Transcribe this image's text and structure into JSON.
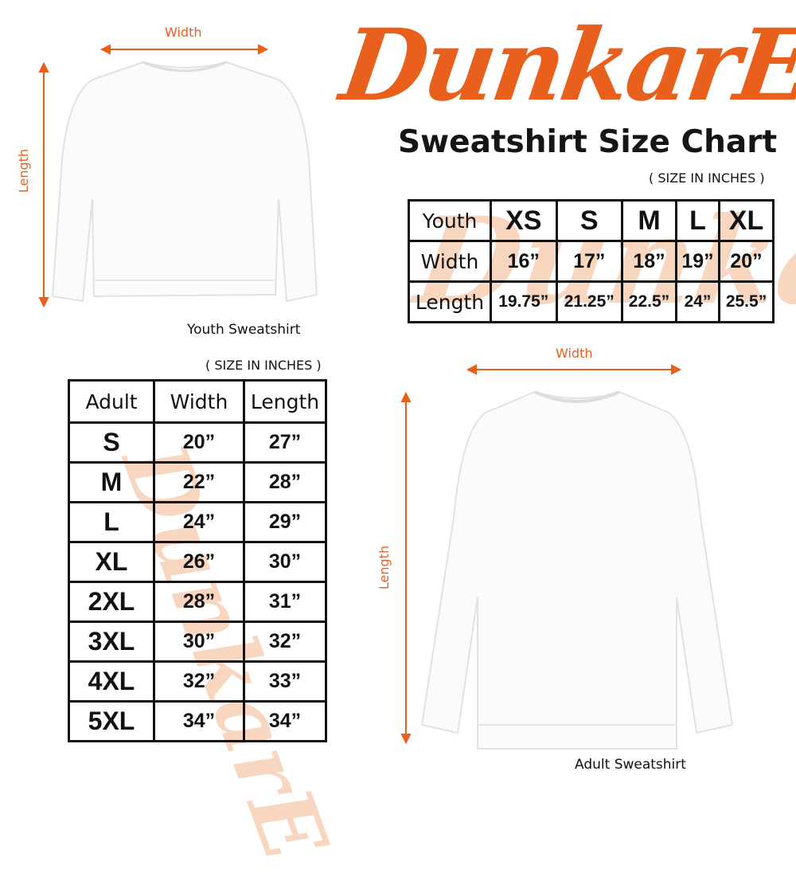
{
  "brand": {
    "logo_text": "DunkarE",
    "accent_color": "#e8601c"
  },
  "title": "Sweatshirt Size Chart",
  "youth": {
    "units_note": "( SIZE IN INCHES )",
    "image_caption": "Youth Sweatshirt",
    "width_label": "Width",
    "length_label": "Length",
    "table": {
      "header": [
        "Youth",
        "XS",
        "S",
        "M",
        "L",
        "XL"
      ],
      "rows": [
        [
          "Width",
          "16”",
          "17”",
          "18”",
          "19”",
          "20”"
        ],
        [
          "Length",
          "19.75”",
          "21.25”",
          "22.5”",
          "24”",
          "25.5”"
        ]
      ]
    }
  },
  "adult": {
    "units_note": "( SIZE IN INCHES )",
    "image_caption": "Adult Sweatshirt",
    "width_label": "Width",
    "length_label": "Length",
    "table": {
      "header": [
        "Adult",
        "Width",
        "Length"
      ],
      "rows": [
        [
          "S",
          "20”",
          "27”"
        ],
        [
          "M",
          "22”",
          "28”"
        ],
        [
          "L",
          "24”",
          "29”"
        ],
        [
          "XL",
          "26”",
          "30”"
        ],
        [
          "2XL",
          "28”",
          "31”"
        ],
        [
          "3XL",
          "30”",
          "32”"
        ],
        [
          "4XL",
          "32”",
          "33”"
        ],
        [
          "5XL",
          "34”",
          "34”"
        ]
      ]
    }
  }
}
